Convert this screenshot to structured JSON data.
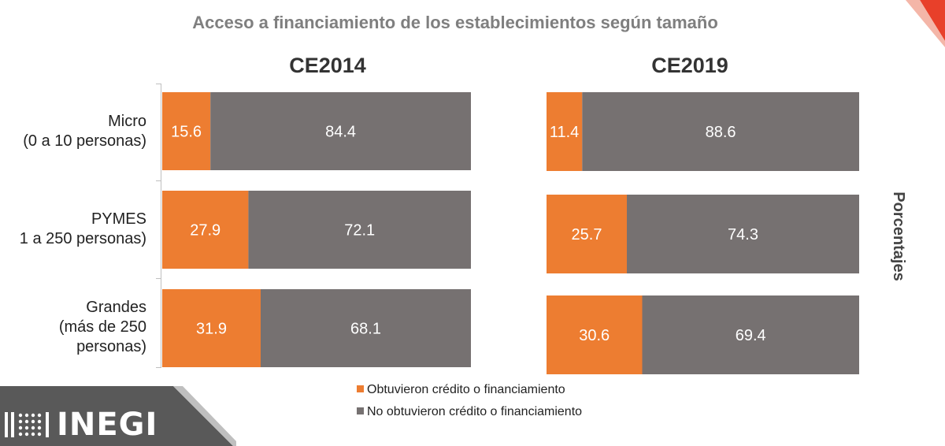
{
  "title": "Acceso a financiamiento de los establecimientos según tamaño",
  "y_axis_label": "Porcentajes",
  "colors": {
    "obtained": "#ed7d31",
    "not_obtained": "#767171",
    "accent": "#e8402a"
  },
  "categories": [
    {
      "lines": [
        "Micro",
        "(0 a 10 personas)"
      ]
    },
    {
      "lines": [
        "PYMES",
        "1 a 250 personas)"
      ]
    },
    {
      "lines": [
        "Grandes",
        "(más de 250",
        "personas)"
      ]
    }
  ],
  "legend": {
    "obtained": "Obtuvieron crédito o financiamiento",
    "not_obtained": "No obtuvieron crédito o financiamiento"
  },
  "logo": {
    "text": "INEGI"
  },
  "chart_data": [
    {
      "type": "bar",
      "title": "CE2014",
      "stacked": true,
      "orientation": "horizontal",
      "categories": [
        "Micro (0 a 10 personas)",
        "PYMES 1 a 250 personas)",
        "Grandes (más de 250 personas)"
      ],
      "series": [
        {
          "name": "Obtuvieron crédito o financiamiento",
          "values": [
            15.6,
            27.9,
            31.9
          ],
          "labels": [
            "15.6",
            "27.9",
            "31.9"
          ]
        },
        {
          "name": "No obtuvieron crédito o financiamiento",
          "values": [
            84.4,
            72.1,
            68.1
          ],
          "labels": [
            "84.4",
            "72.1",
            "68.1"
          ]
        }
      ],
      "xlim": [
        0,
        100
      ],
      "ylabel": "Porcentajes"
    },
    {
      "type": "bar",
      "title": "CE2019",
      "stacked": true,
      "orientation": "horizontal",
      "categories": [
        "Micro (0 a 10 personas)",
        "PYMES 1 a 250 personas)",
        "Grandes (más de 250 personas)"
      ],
      "series": [
        {
          "name": "Obtuvieron crédito o financiamiento",
          "values": [
            11.4,
            25.7,
            30.6
          ],
          "labels": [
            "11.4",
            "25.7",
            "30.6"
          ]
        },
        {
          "name": "No obtuvieron crédito o financiamiento",
          "values": [
            88.6,
            74.3,
            69.4
          ],
          "labels": [
            "88.6",
            "74.3",
            "69.4"
          ]
        }
      ],
      "xlim": [
        0,
        100
      ],
      "ylabel": "Porcentajes"
    }
  ]
}
